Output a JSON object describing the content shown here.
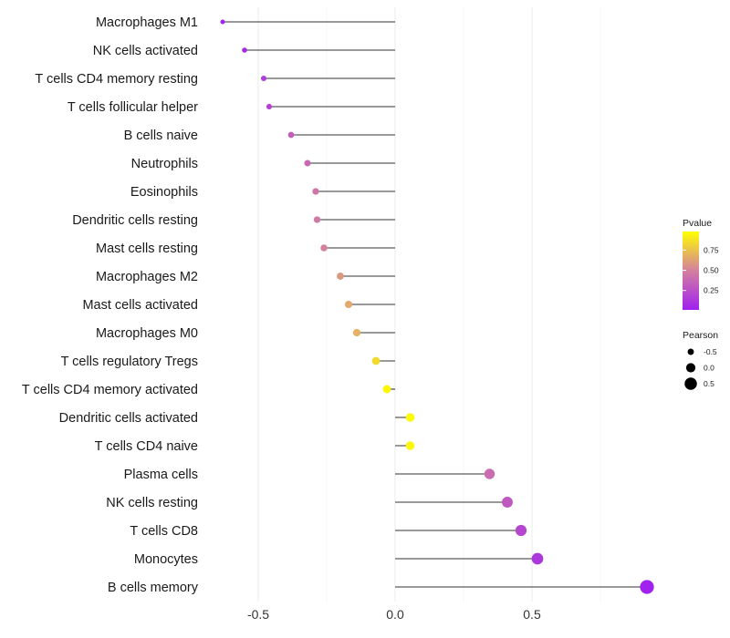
{
  "chart_data": {
    "type": "lollipop",
    "title": "",
    "xlabel": "",
    "ylabel": "",
    "xlim": [
      -0.62,
      0.93
    ],
    "x_ticks": [
      -0.5,
      0.0,
      0.5
    ],
    "x_tick_labels": [
      "-0.5",
      "0.0",
      "0.5"
    ],
    "grid": "vertical",
    "categories": [
      "Macrophages M1",
      "NK cells activated",
      "T cells CD4 memory resting",
      "T cells follicular helper",
      "B cells naive",
      "Neutrophils",
      "Eosinophils",
      "Dendritic cells resting",
      "Mast cells resting",
      "Macrophages M2",
      "Mast cells activated",
      "Macrophages M0",
      "T cells regulatory  Tregs ",
      "T cells CD4 memory activated",
      "Dendritic cells activated",
      "T cells CD4 naive",
      "Plasma cells",
      "NK cells resting",
      "T cells CD8",
      "Monocytes",
      "B cells memory"
    ],
    "pearson": [
      -0.63,
      -0.55,
      -0.48,
      -0.46,
      -0.38,
      -0.32,
      -0.29,
      -0.285,
      -0.26,
      -0.2,
      -0.17,
      -0.14,
      -0.07,
      -0.03,
      0.055,
      0.055,
      0.345,
      0.41,
      0.46,
      0.52,
      0.92
    ],
    "pvalue": [
      0.02,
      0.05,
      0.15,
      0.18,
      0.33,
      0.38,
      0.45,
      0.47,
      0.5,
      0.6,
      0.66,
      0.7,
      0.86,
      0.97,
      0.98,
      0.97,
      0.4,
      0.3,
      0.2,
      0.12,
      0.01
    ],
    "legend": {
      "color_title": "Pvalue",
      "color_ticks": [
        0.25,
        0.5,
        0.75
      ],
      "color_tick_labels": [
        "0.25",
        "0.50",
        "0.75"
      ],
      "color_low": "#a020f0",
      "color_high": "#ffff00",
      "size_title": "Pearson",
      "size_ticks": [
        -0.5,
        0.0,
        0.5
      ],
      "size_tick_labels": [
        "-0.5",
        "0.0",
        "0.5"
      ],
      "position": "right"
    }
  }
}
